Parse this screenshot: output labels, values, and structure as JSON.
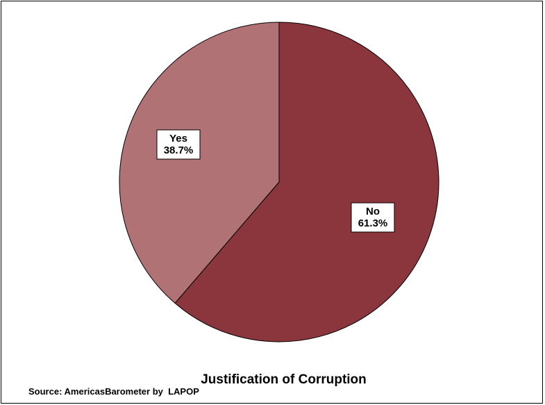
{
  "chart_data": {
    "type": "pie",
    "title": "Justification of Corruption",
    "source": "Source: AmericasBarometer by  LAPOP",
    "slices": [
      {
        "label": "No",
        "value": 61.3,
        "display": "61.3%",
        "color": "#8b353d"
      },
      {
        "label": "Yes",
        "value": 38.7,
        "display": "38.7%",
        "color": "#b07275"
      }
    ],
    "start_angle_deg": 0,
    "direction": "clockwise"
  }
}
